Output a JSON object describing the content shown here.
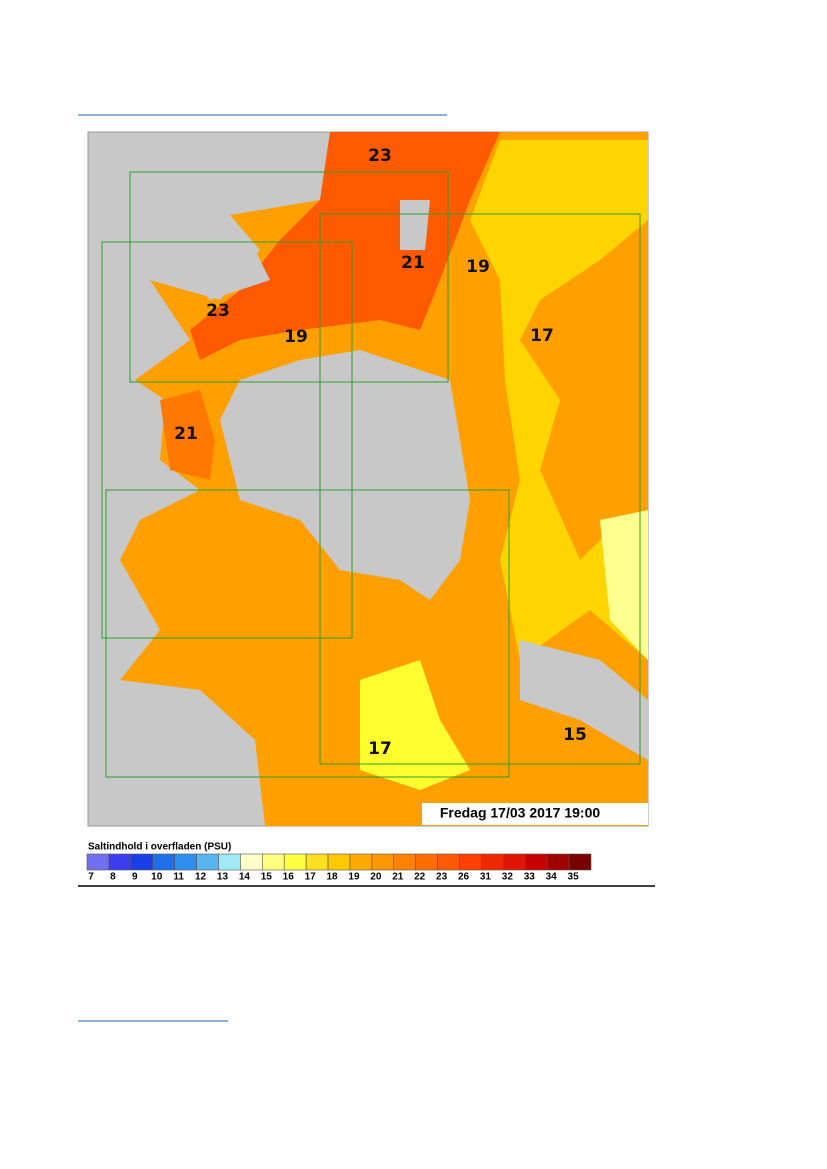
{
  "map": {
    "contour_labels": [
      "23",
      "21",
      "19",
      "23",
      "19",
      "17",
      "21",
      "17",
      "15"
    ],
    "timestamp": "Fredag 17/03 2017 19:00",
    "legend": {
      "title": "Saltindhold i overfladen (PSU)",
      "labels": [
        7,
        8,
        9,
        10,
        11,
        12,
        13,
        14,
        15,
        16,
        17,
        18,
        19,
        20,
        21,
        22,
        23,
        26,
        31,
        32,
        33,
        34,
        35
      ],
      "colors": [
        "#7070ee",
        "#3c3cf0",
        "#1a3ee8",
        "#1e6fe8",
        "#2e8ef0",
        "#5ab4f0",
        "#a0eaf8",
        "#ffffc8",
        "#ffff80",
        "#ffff40",
        "#ffe020",
        "#ffc800",
        "#ffaa00",
        "#ff9600",
        "#ff8200",
        "#ff6e00",
        "#ff5a00",
        "#ff4000",
        "#f02800",
        "#e01400",
        "#c80000",
        "#a00000",
        "#780000"
      ]
    }
  }
}
